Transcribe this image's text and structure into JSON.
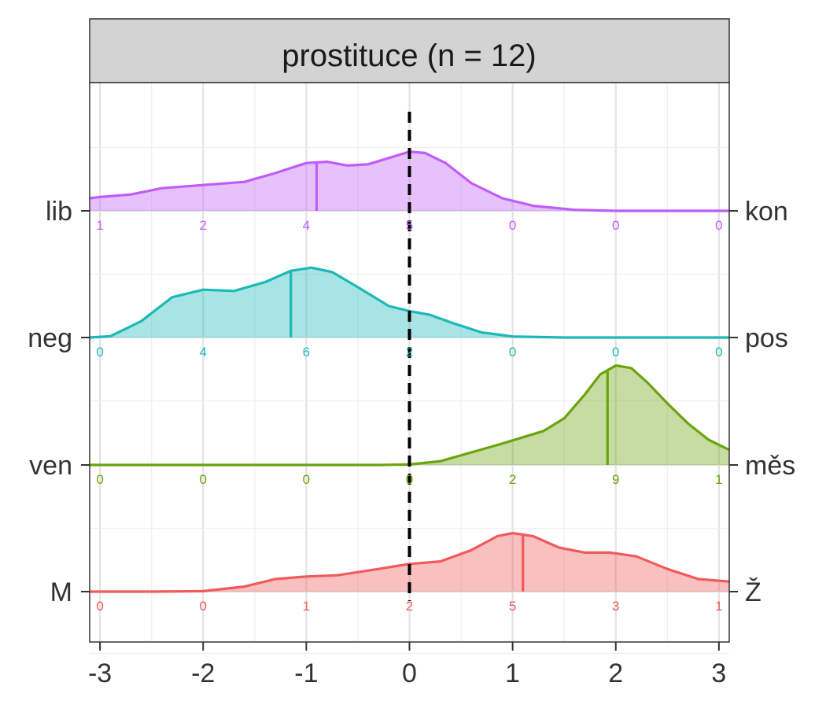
{
  "chart_data": {
    "type": "ridgeline",
    "title": "prostituce (n = 12)",
    "x_ticks": [
      "-3",
      "-2",
      "-1",
      "0",
      "1",
      "2",
      "3"
    ],
    "xlim": [
      -3.1,
      3.1
    ],
    "reference_line_x": 0,
    "grid": true,
    "series": [
      {
        "left_label": "lib",
        "right_label": "kon",
        "color": "#C05CF7",
        "mean": -0.9,
        "counts": [
          "1",
          "2",
          "4",
          "5",
          "0",
          "0",
          "0"
        ],
        "density_peak": 0.47,
        "density": [
          [
            -3.1,
            0.1
          ],
          [
            -3.0,
            0.11
          ],
          [
            -2.7,
            0.13
          ],
          [
            -2.4,
            0.18
          ],
          [
            -2.0,
            0.205
          ],
          [
            -1.6,
            0.23
          ],
          [
            -1.3,
            0.3
          ],
          [
            -1.0,
            0.38
          ],
          [
            -0.8,
            0.39
          ],
          [
            -0.6,
            0.36
          ],
          [
            -0.4,
            0.37
          ],
          [
            -0.2,
            0.42
          ],
          [
            0.0,
            0.47
          ],
          [
            0.15,
            0.46
          ],
          [
            0.35,
            0.38
          ],
          [
            0.6,
            0.22
          ],
          [
            0.9,
            0.1
          ],
          [
            1.2,
            0.04
          ],
          [
            1.6,
            0.008
          ],
          [
            2.0,
            0.0
          ],
          [
            3.1,
            0.0
          ]
        ]
      },
      {
        "left_label": "neg",
        "right_label": "pos",
        "color": "#1CB8B8",
        "mean": -1.15,
        "counts": [
          "0",
          "4",
          "6",
          "2",
          "0",
          "0",
          "0"
        ],
        "density_peak": 0.56,
        "density": [
          [
            -3.1,
            0.0
          ],
          [
            -2.9,
            0.01
          ],
          [
            -2.6,
            0.13
          ],
          [
            -2.3,
            0.32
          ],
          [
            -2.0,
            0.38
          ],
          [
            -1.7,
            0.37
          ],
          [
            -1.4,
            0.44
          ],
          [
            -1.15,
            0.53
          ],
          [
            -0.95,
            0.555
          ],
          [
            -0.75,
            0.52
          ],
          [
            -0.5,
            0.4
          ],
          [
            -0.2,
            0.25
          ],
          [
            0.0,
            0.21
          ],
          [
            0.2,
            0.18
          ],
          [
            0.4,
            0.12
          ],
          [
            0.7,
            0.04
          ],
          [
            1.0,
            0.008
          ],
          [
            1.5,
            0.0
          ],
          [
            3.1,
            0.0
          ]
        ]
      },
      {
        "left_label": "ven",
        "right_label": "měs",
        "color": "#6AA40C",
        "mean": 1.92,
        "counts": [
          "0",
          "0",
          "0",
          "0",
          "2",
          "9",
          "1"
        ],
        "density_peak": 0.8,
        "density": [
          [
            -3.1,
            0.0
          ],
          [
            -0.3,
            0.0
          ],
          [
            0.0,
            0.004
          ],
          [
            0.3,
            0.03
          ],
          [
            0.6,
            0.1
          ],
          [
            0.9,
            0.17
          ],
          [
            1.1,
            0.22
          ],
          [
            1.3,
            0.27
          ],
          [
            1.5,
            0.37
          ],
          [
            1.7,
            0.56
          ],
          [
            1.85,
            0.72
          ],
          [
            2.0,
            0.79
          ],
          [
            2.15,
            0.77
          ],
          [
            2.3,
            0.66
          ],
          [
            2.5,
            0.49
          ],
          [
            2.7,
            0.33
          ],
          [
            2.9,
            0.2
          ],
          [
            3.1,
            0.12
          ]
        ]
      },
      {
        "left_label": "M",
        "right_label": "Ž",
        "color": "#F05A5A",
        "mean": 1.1,
        "counts": [
          "0",
          "0",
          "1",
          "2",
          "5",
          "3",
          "1"
        ],
        "density_peak": 0.46,
        "density": [
          [
            -3.1,
            0.0
          ],
          [
            -2.5,
            0.0
          ],
          [
            -2.0,
            0.004
          ],
          [
            -1.6,
            0.04
          ],
          [
            -1.3,
            0.1
          ],
          [
            -1.0,
            0.12
          ],
          [
            -0.7,
            0.13
          ],
          [
            -0.3,
            0.18
          ],
          [
            0.0,
            0.22
          ],
          [
            0.3,
            0.24
          ],
          [
            0.6,
            0.33
          ],
          [
            0.85,
            0.44
          ],
          [
            1.0,
            0.465
          ],
          [
            1.2,
            0.44
          ],
          [
            1.45,
            0.35
          ],
          [
            1.7,
            0.31
          ],
          [
            1.95,
            0.31
          ],
          [
            2.2,
            0.28
          ],
          [
            2.5,
            0.18
          ],
          [
            2.8,
            0.1
          ],
          [
            3.1,
            0.08
          ]
        ]
      }
    ]
  }
}
